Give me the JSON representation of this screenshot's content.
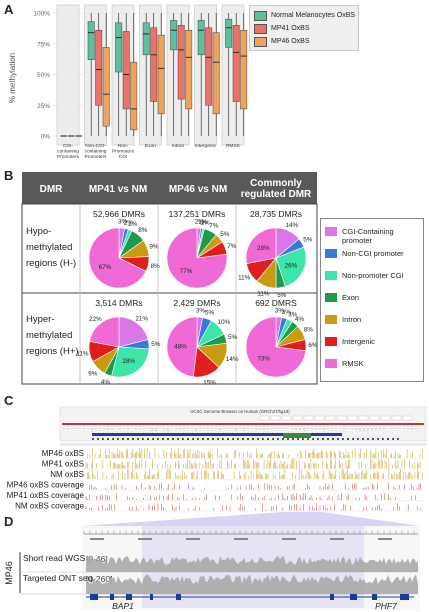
{
  "panels": {
    "a": "A",
    "b": "B",
    "c": "C",
    "d": "D"
  },
  "panelA": {
    "ylabel": "% methylation",
    "yticks": [
      "100%",
      "75%",
      "50%",
      "25%",
      "0%"
    ],
    "groups": [
      "CGI-\ncontaining\nPromoters",
      "Non-CGI-\ncontaining\nPromoters",
      "Non-\nPromoters\nCGI",
      "Exon",
      "Intron",
      "Intergenic",
      "RMSK"
    ],
    "legend": [
      {
        "label": "Normal Melanocytes OxBS",
        "color": "#5dbf9e"
      },
      {
        "label": "MP41 OxBS",
        "color": "#e8736b"
      },
      {
        "label": "MP46 OxBS",
        "color": "#f0a25a"
      }
    ]
  },
  "chart_data": {
    "type": "box",
    "ylabel": "% methylation",
    "ylim": [
      0,
      100
    ],
    "categories": [
      "CGI-containing Promoters",
      "Non-CGI-containing Promoters",
      "Non-Promoters CGI",
      "Exon",
      "Intron",
      "Intergenic",
      "RMSK"
    ],
    "series": [
      {
        "name": "Normal Melanocytes OxBS",
        "boxes": [
          [
            0,
            0,
            0,
            0,
            0
          ],
          [
            0,
            62,
            84,
            93,
            100
          ],
          [
            0,
            52,
            80,
            92,
            100
          ],
          [
            0,
            66,
            83,
            92,
            100
          ],
          [
            0,
            70,
            86,
            94,
            100
          ],
          [
            0,
            66,
            86,
            94,
            100
          ],
          [
            0,
            72,
            88,
            95,
            100
          ]
        ]
      },
      {
        "name": "MP41 OxBS",
        "boxes": [
          [
            0,
            0,
            0,
            0,
            0
          ],
          [
            0,
            25,
            54,
            86,
            100
          ],
          [
            0,
            22,
            50,
            85,
            100
          ],
          [
            0,
            28,
            66,
            88,
            100
          ],
          [
            0,
            30,
            70,
            90,
            100
          ],
          [
            0,
            25,
            64,
            88,
            100
          ],
          [
            0,
            28,
            68,
            90,
            100
          ]
        ]
      },
      {
        "name": "MP46 OxBS",
        "boxes": [
          [
            0,
            0,
            0,
            0,
            0
          ],
          [
            0,
            8,
            34,
            72,
            100
          ],
          [
            0,
            5,
            22,
            60,
            100
          ],
          [
            0,
            18,
            55,
            82,
            100
          ],
          [
            0,
            22,
            64,
            86,
            100
          ],
          [
            0,
            18,
            60,
            84,
            100
          ],
          [
            0,
            22,
            65,
            86,
            100
          ]
        ]
      }
    ]
  },
  "panelB": {
    "headers": {
      "dmr": "DMR",
      "mp41": "MP41 vs NM",
      "mp46": "MP46 vs NM",
      "common": "Commonly\nregulated DMR"
    },
    "rows": [
      {
        "label": "Hypo-\nmethylated\nregions (H-)",
        "counts": [
          "52,966 DMRs",
          "137,251 DMRs",
          "28,735 DMRs"
        ]
      },
      {
        "label": "Hyper-\nmethylated\nregions (H+)",
        "counts": [
          "3,514 DMRs",
          "2,429 DMRs",
          "692 DMRS"
        ]
      }
    ],
    "pies": [
      [
        {
          "slices": [
            3,
            2,
            2,
            8,
            9,
            8,
            67
          ],
          "labels": [
            "3%",
            "2%",
            "2%",
            "8%",
            "9%",
            "8%",
            "67%"
          ]
        },
        {
          "slices": [
            2,
            1,
            1,
            7,
            5,
            7,
            77
          ],
          "labels": [
            "2%",
            "1%",
            "1%",
            "7%",
            "5%",
            "7%",
            "77%"
          ]
        },
        {
          "slices": [
            14,
            5,
            26,
            5,
            11,
            11,
            28
          ],
          "labels": [
            "14%",
            "5%",
            "26%",
            "5%",
            "11%",
            "11%",
            "28%"
          ]
        }
      ],
      [
        {
          "slices": [
            21,
            5,
            28,
            4,
            9,
            11,
            22
          ],
          "labels": [
            "21%",
            "5%",
            "28%",
            "4%",
            "9%",
            "11%",
            "22%"
          ]
        },
        {
          "slices": [
            3,
            5,
            10,
            5,
            14,
            15,
            48
          ],
          "labels": [
            "3%",
            "5%",
            "10%",
            "5%",
            "14%",
            "15%",
            "48%"
          ]
        },
        {
          "slices": [
            3,
            3,
            3,
            4,
            8,
            6,
            73
          ],
          "labels": [
            "3%",
            "3%",
            "3%",
            "4%",
            "8%",
            "6%",
            "73%"
          ]
        }
      ]
    ],
    "legend": [
      {
        "label": "CGI-Containing\npromoter",
        "color": "#d977e6"
      },
      {
        "label": "Non-CGI promoter",
        "color": "#3a78d9"
      },
      {
        "label": "Non-promoter CGI",
        "color": "#3de6a8"
      },
      {
        "label": "Exon",
        "color": "#1e9a4a"
      },
      {
        "label": "Intron",
        "color": "#c89b12"
      },
      {
        "label": "Intergenic",
        "color": "#e01e1e"
      },
      {
        "label": "RMSK",
        "color": "#f06ad6"
      }
    ]
  },
  "panelC": {
    "browser_title": "UCSC Genome Browser on Human (GRCh37/hg19)",
    "tracks": [
      "MP46 oxBS",
      "MP41 oxBS",
      "NM oxBS",
      "MP46 oxBS coverage",
      "MP41 oxBS coverage",
      "NM oxBS coverage"
    ]
  },
  "panelD": {
    "side_label": "MP46",
    "tracks": [
      {
        "label": "Short read WGS",
        "range": "[0-46]"
      },
      {
        "label": "Targeted ONT seq.",
        "range": "[0-260]"
      }
    ],
    "genes": [
      "BAP1",
      "PHF7"
    ]
  }
}
